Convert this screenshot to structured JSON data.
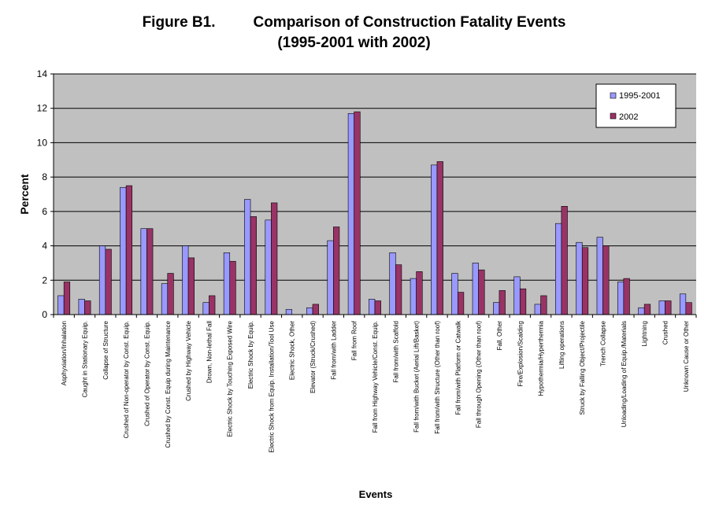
{
  "chart_data": {
    "type": "bar",
    "title_prefix": "Figure B1.",
    "title": "Comparison of Construction Fatality Events",
    "subtitle": "(1995-2001 with 2002)",
    "xlabel": "Events",
    "ylabel": "Percent",
    "ylim": [
      0,
      14
    ],
    "yticks": [
      0,
      2,
      4,
      6,
      8,
      10,
      12,
      14
    ],
    "grid": true,
    "legend_position": "top-right",
    "background_color": "#c0c0c0",
    "categories": [
      "Asphyxiation/Inhalation",
      "Caught in Stationary Equip.",
      "Collapse of Structure",
      "Crushed of Non-operator by Const. Equip.",
      "Crushed of Operator by Const. Equip.",
      "Crushed by Const. Equip during Maintenance",
      "Crushed by Highway Vehicle",
      "Drown, Non-lethal Fall",
      "Electric Shock by Touching Exposed Wire",
      "Electric Shock by Equip.",
      "Electric Shock from Equip. Installation/Tool Use",
      "Electric Shock, Other",
      "Elevator (Struck/Crushed)",
      "Fall from/with Ladder",
      "Fall from Roof",
      "Fall from Highway Vehicle/Const. Equip.",
      "Fall from/with Scaffold",
      "Fall from/with Bucket (Aerial Lift/Basket)",
      "Fall from/with Structure (Other than roof)",
      "Fall from/with Platform or Catwalk",
      "Fall through Opening (Other than roof)",
      "Fall, Other",
      "Fire/Explosion/Scalding",
      "Hypothermia/Hyperthermia",
      "Lifting operations",
      "Struck by Falling Object/Projectile",
      "Trench Collapse",
      "Unloading/Loading of Equip./Materials",
      "Lightning",
      "Crushed",
      "Unknown Cause or Other"
    ],
    "series": [
      {
        "name": "1995-2001",
        "color": "#9999ff",
        "values": [
          1.1,
          0.9,
          4.0,
          7.4,
          5.0,
          1.8,
          4.0,
          0.7,
          3.6,
          6.7,
          5.5,
          0.3,
          0.4,
          4.3,
          11.7,
          0.9,
          3.6,
          2.1,
          8.7,
          2.4,
          3.0,
          0.7,
          2.2,
          0.6,
          5.3,
          4.2,
          4.5,
          1.9,
          0.4,
          0.8,
          1.2
        ]
      },
      {
        "name": "2002",
        "color": "#993366",
        "values": [
          1.9,
          0.8,
          3.8,
          7.5,
          5.0,
          2.4,
          3.3,
          1.1,
          3.1,
          5.7,
          6.5,
          0.0,
          0.6,
          5.1,
          11.8,
          0.8,
          2.9,
          2.5,
          8.9,
          1.3,
          2.6,
          1.4,
          1.5,
          1.1,
          6.3,
          3.9,
          4.0,
          2.1,
          0.6,
          0.8,
          0.7
        ]
      }
    ]
  }
}
